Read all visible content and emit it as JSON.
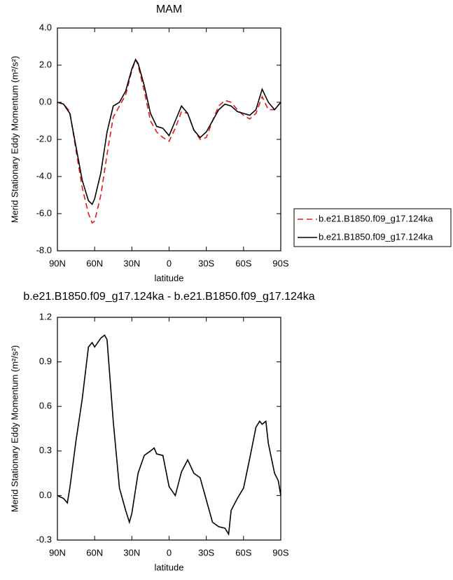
{
  "chart_data": [
    {
      "type": "line",
      "title": "MAM",
      "x_label": "latitude",
      "y_label": "Merid Stationary Eddy Momentum (m²/s²)",
      "x": [
        90,
        85,
        80,
        75,
        70,
        65,
        62,
        60,
        55,
        50,
        45,
        40,
        35,
        30,
        27,
        25,
        20,
        15,
        10,
        5,
        0,
        -5,
        -10,
        -15,
        -20,
        -25,
        -30,
        -35,
        -40,
        -45,
        -50,
        -55,
        -60,
        -65,
        -70,
        -75,
        -80,
        -85,
        -90
      ],
      "series": [
        {
          "name": "b.e21.B1850.f09_g17.124ka",
          "color": "#e8161b",
          "dashed": true,
          "values": [
            0,
            -0.1,
            -0.5,
            -2.6,
            -4.6,
            -6.0,
            -6.5,
            -6.4,
            -5.0,
            -2.8,
            -0.8,
            -0.2,
            0.4,
            1.7,
            2.3,
            2.0,
            0.6,
            -1.0,
            -1.6,
            -1.9,
            -2.1,
            -1.4,
            -0.5,
            -0.6,
            -1.5,
            -2.0,
            -1.9,
            -1.0,
            -0.2,
            0.1,
            0.0,
            -0.4,
            -0.7,
            -0.9,
            -0.6,
            0.3,
            -0.4,
            -0.4,
            0
          ]
        },
        {
          "name": "b.e21.B1850.f09_g17.124ka",
          "color": "#000000",
          "dashed": false,
          "values": [
            0,
            -0.1,
            -0.6,
            -2.4,
            -4.2,
            -5.3,
            -5.5,
            -5.2,
            -3.8,
            -1.6,
            -0.2,
            0.0,
            0.6,
            1.8,
            2.3,
            2.1,
            0.9,
            -0.6,
            -1.3,
            -1.4,
            -1.8,
            -1.0,
            -0.2,
            -0.6,
            -1.5,
            -1.9,
            -1.6,
            -1.0,
            -0.4,
            -0.1,
            -0.2,
            -0.5,
            -0.6,
            -0.7,
            -0.4,
            0.7,
            0.0,
            -0.4,
            0
          ]
        }
      ],
      "xlim": [
        90,
        -90
      ],
      "xticks": [
        {
          "value": 90,
          "label": "90N"
        },
        {
          "value": 60,
          "label": "60N"
        },
        {
          "value": 30,
          "label": "30N"
        },
        0,
        {
          "value": -30,
          "label": "30S"
        },
        {
          "value": -60,
          "label": "60S"
        },
        {
          "value": -90,
          "label": "90S"
        }
      ],
      "ylim": [
        -8,
        4
      ],
      "yticks": [
        {
          "value": 4,
          "label": "4.0"
        },
        {
          "value": 2,
          "label": "2.0"
        },
        {
          "value": 0,
          "label": "0.0"
        },
        {
          "value": -2,
          "label": "-2.0"
        },
        {
          "value": -4,
          "label": "-4.0"
        },
        {
          "value": -6,
          "label": "-6.0"
        },
        {
          "value": -8,
          "label": "-8.0"
        }
      ],
      "legend": "outside-right"
    },
    {
      "type": "line",
      "title": "b.e21.B1850.f09_g17.124ka - b.e21.B1850.f09_g17.124ka",
      "x_label": "latitude",
      "y_label": "Merid Stationary Eddy Momentum (m²/s²)",
      "x": [
        90,
        85,
        82,
        80,
        75,
        70,
        65,
        62,
        60,
        55,
        52,
        50,
        45,
        40,
        35,
        32,
        30,
        25,
        20,
        15,
        12,
        10,
        5,
        0,
        -5,
        -10,
        -15,
        -20,
        -25,
        -30,
        -35,
        -40,
        -45,
        -48,
        -50,
        -55,
        -60,
        -65,
        -70,
        -73,
        -75,
        -78,
        -80,
        -85,
        -88,
        -90
      ],
      "values": [
        0,
        -0.02,
        -0.05,
        0.05,
        0.37,
        0.65,
        1.0,
        1.03,
        1.0,
        1.06,
        1.08,
        1.05,
        0.5,
        0.05,
        -0.1,
        -0.18,
        -0.12,
        0.15,
        0.27,
        0.3,
        0.32,
        0.28,
        0.27,
        0.06,
        0.0,
        0.16,
        0.24,
        0.15,
        0.12,
        -0.03,
        -0.18,
        -0.21,
        -0.22,
        -0.26,
        -0.1,
        -0.02,
        0.05,
        0.25,
        0.46,
        0.5,
        0.48,
        0.5,
        0.35,
        0.15,
        0.1,
        0
      ],
      "color": "#000000",
      "xlim": [
        90,
        -90
      ],
      "xticks": [
        {
          "value": 90,
          "label": "90N"
        },
        {
          "value": 60,
          "label": "60N"
        },
        {
          "value": 30,
          "label": "30N"
        },
        0,
        {
          "value": -30,
          "label": "30S"
        },
        {
          "value": -60,
          "label": "60S"
        },
        {
          "value": -90,
          "label": "90S"
        }
      ],
      "ylim": [
        -0.3,
        1.2
      ],
      "yticks": [
        1.2,
        0.9,
        0.6,
        0.3,
        {
          "value": 0,
          "label": "0.0"
        },
        -0.3
      ]
    }
  ]
}
